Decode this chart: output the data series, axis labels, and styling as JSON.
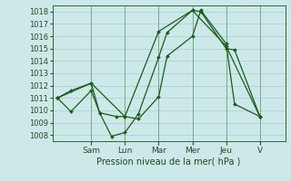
{
  "xlabel": "Pression niveau de la mer( hPa )",
  "bg_color": "#cce8e8",
  "grid_color": "#aacece",
  "line_color": "#1a5c1a",
  "ylim": [
    1007.5,
    1018.5
  ],
  "yticks": [
    1008,
    1009,
    1010,
    1011,
    1012,
    1013,
    1014,
    1015,
    1016,
    1017,
    1018
  ],
  "day_labels": [
    "Sam",
    "Lun",
    "Mar",
    "Mer",
    "Jeu",
    "V"
  ],
  "day_positions": [
    2,
    4,
    6,
    8,
    10,
    12
  ],
  "xlim": [
    -0.3,
    13.5
  ],
  "series": [
    {
      "x": [
        0,
        0.8,
        2,
        2.5,
        3.5,
        4,
        4.8,
        6,
        6.5,
        8,
        8.5,
        10,
        10.5,
        12
      ],
      "y": [
        1011,
        1009.9,
        1011.6,
        1009.8,
        1009.5,
        1009.5,
        1009.3,
        1011.1,
        1014.4,
        1016.0,
        1018.1,
        1015.4,
        1010.5,
        1009.5
      ]
    },
    {
      "x": [
        0,
        0.8,
        2,
        2.5,
        3.2,
        4,
        4.8,
        6,
        6.5,
        8,
        8.5,
        10,
        10.5,
        12
      ],
      "y": [
        1011,
        1011.6,
        1012.2,
        1009.8,
        1007.9,
        1008.2,
        1009.7,
        1014.3,
        1016.3,
        1018.1,
        1018.0,
        1015.0,
        1014.9,
        1009.5
      ]
    },
    {
      "x": [
        0,
        2,
        4,
        6,
        8,
        10,
        12
      ],
      "y": [
        1011,
        1012.2,
        1009.5,
        1016.4,
        1018.1,
        1015.2,
        1009.5
      ]
    }
  ],
  "separator_positions": [
    2,
    4,
    6,
    8,
    10,
    12
  ]
}
